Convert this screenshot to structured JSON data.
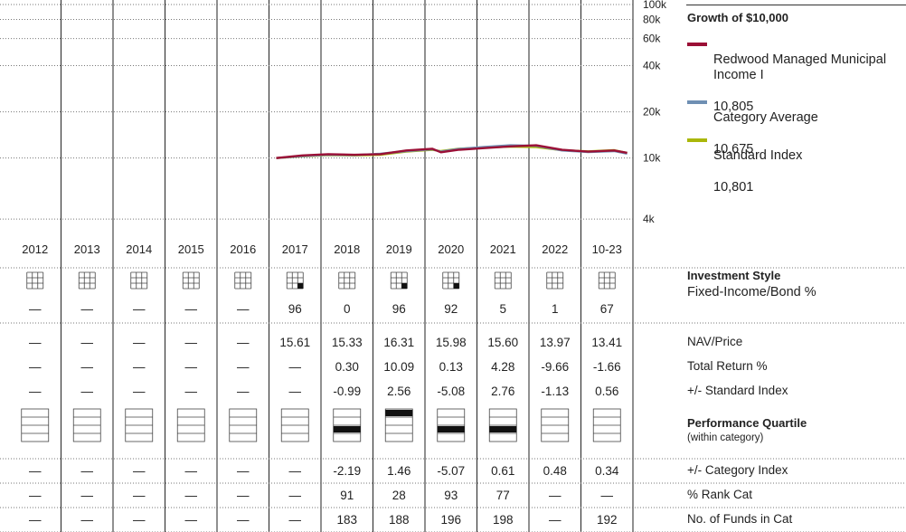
{
  "chart_data": {
    "type": "line",
    "title": "Growth of  $10,000",
    "yscale": "log",
    "ylim": [
      3500,
      100000
    ],
    "y_ticks": [
      {
        "value": 100000,
        "label": "100k"
      },
      {
        "value": 80000,
        "label": "80k"
      },
      {
        "value": 60000,
        "label": "60k"
      },
      {
        "value": 40000,
        "label": "40k"
      },
      {
        "value": 20000,
        "label": "20k"
      },
      {
        "value": 10000,
        "label": "10k"
      },
      {
        "value": 4000,
        "label": "4k"
      }
    ],
    "categories": [
      "2012",
      "2013",
      "2014",
      "2015",
      "2016",
      "2017",
      "2018",
      "2019",
      "2020",
      "2021",
      "2022",
      "10-23"
    ],
    "x": [
      "2017-01",
      "2017-07",
      "2018-01",
      "2018-07",
      "2019-01",
      "2019-07",
      "2020-01",
      "2020-03",
      "2020-07",
      "2021-01",
      "2021-07",
      "2022-01",
      "2022-07",
      "2023-01",
      "2023-07",
      "2023-10"
    ],
    "series": [
      {
        "name": "Redwood Managed Municipal Income I",
        "value_label": "10,805",
        "color": "#9b1036",
        "values": [
          10000,
          10400,
          10600,
          10500,
          10600,
          11200,
          11500,
          10900,
          11300,
          11600,
          11900,
          12100,
          11300,
          11000,
          11200,
          10805
        ]
      },
      {
        "name": "Category Average",
        "value_label": "10,675",
        "color": "#6f8fb3",
        "values": [
          10000,
          10300,
          10500,
          10450,
          10650,
          11100,
          11400,
          11000,
          11450,
          11800,
          12100,
          12000,
          11200,
          10950,
          11100,
          10675
        ]
      },
      {
        "name": "Standard Index",
        "value_label": "10,801",
        "color": "#aab70a",
        "values": [
          10000,
          10250,
          10450,
          10400,
          10500,
          11000,
          11300,
          11100,
          11500,
          11700,
          11850,
          11800,
          11250,
          11050,
          11250,
          10801
        ]
      }
    ]
  },
  "style_boxes": [
    {
      "marked": false
    },
    {
      "marked": false
    },
    {
      "marked": false
    },
    {
      "marked": false
    },
    {
      "marked": false
    },
    {
      "marked": true
    },
    {
      "marked": false
    },
    {
      "marked": true
    },
    {
      "marked": true
    },
    {
      "marked": false
    },
    {
      "marked": false
    },
    {
      "marked": false
    }
  ],
  "fixed_income_pct": [
    "—",
    "—",
    "—",
    "—",
    "—",
    "96",
    "0",
    "96",
    "92",
    "5",
    "1",
    "67"
  ],
  "quartile": [
    0,
    0,
    0,
    0,
    0,
    0,
    3,
    1,
    3,
    3,
    0,
    0
  ],
  "table_rows": [
    {
      "label": "NAV/Price",
      "values": [
        "—",
        "—",
        "—",
        "—",
        "—",
        "15.61",
        "15.33",
        "16.31",
        "15.98",
        "15.60",
        "13.97",
        "13.41"
      ]
    },
    {
      "label": "Total Return %",
      "values": [
        "—",
        "—",
        "—",
        "—",
        "—",
        "—",
        "0.30",
        "10.09",
        "0.13",
        "4.28",
        "-9.66",
        "-1.66"
      ]
    },
    {
      "label": "+/- Standard Index",
      "values": [
        "—",
        "—",
        "—",
        "—",
        "—",
        "—",
        "-0.99",
        "2.56",
        "-5.08",
        "2.76",
        "-1.13",
        "0.56"
      ]
    }
  ],
  "table_rows_2": [
    {
      "label": "+/- Category Index",
      "values": [
        "—",
        "—",
        "—",
        "—",
        "—",
        "—",
        "-2.19",
        "1.46",
        "-5.07",
        "0.61",
        "0.48",
        "0.34"
      ]
    },
    {
      "label": "% Rank Cat",
      "values": [
        "—",
        "—",
        "—",
        "—",
        "—",
        "—",
        "91",
        "28",
        "93",
        "77",
        "—",
        "—"
      ]
    },
    {
      "label": "No. of Funds in Cat",
      "values": [
        "—",
        "—",
        "—",
        "—",
        "—",
        "—",
        "183",
        "188",
        "196",
        "198",
        "—",
        "192"
      ]
    }
  ],
  "labels": {
    "investment_style": "Investment Style",
    "fixed_income": "Fixed-Income/Bond %",
    "performance_quartile": "Performance Quartile",
    "within_category": "(within category)"
  }
}
